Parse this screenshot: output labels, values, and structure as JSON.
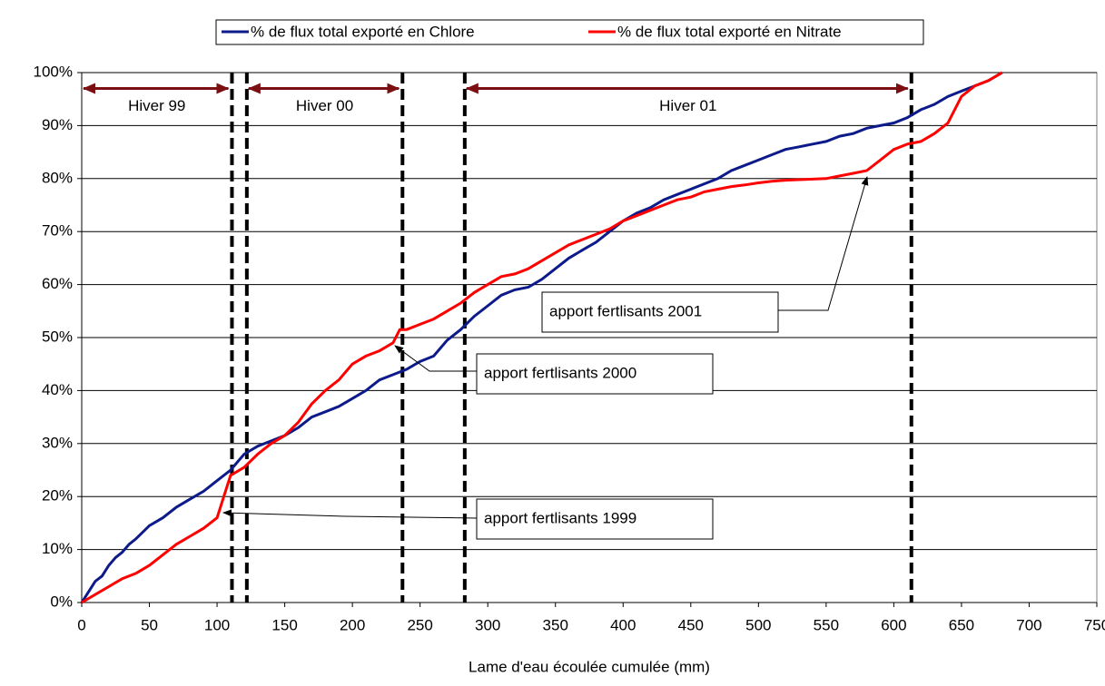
{
  "chart_data": {
    "type": "line",
    "x_label": "Lame d'eau écoulée cumulée (mm)",
    "xlim": [
      0,
      750
    ],
    "xticks": [
      0,
      50,
      100,
      150,
      200,
      250,
      300,
      350,
      400,
      450,
      500,
      550,
      600,
      650,
      700,
      750
    ],
    "ylim": [
      0,
      100
    ],
    "yticks": [
      {
        "value": 0,
        "label": "0%"
      },
      {
        "value": 10,
        "label": "10%"
      },
      {
        "value": 20,
        "label": "20%"
      },
      {
        "value": 30,
        "label": "30%"
      },
      {
        "value": 40,
        "label": "40%"
      },
      {
        "value": 50,
        "label": "50%"
      },
      {
        "value": 60,
        "label": "60%"
      },
      {
        "value": 70,
        "label": "70%"
      },
      {
        "value": 80,
        "label": "80%"
      },
      {
        "value": 90,
        "label": "90%"
      },
      {
        "value": 100,
        "label": "100%"
      }
    ],
    "grid": true,
    "legend": "top",
    "series": [
      {
        "name": "% de flux total exporté en Chlore",
        "color": "#0c1a8a",
        "x": [
          0,
          5,
          10,
          15,
          20,
          25,
          30,
          35,
          40,
          50,
          60,
          70,
          80,
          90,
          100,
          110,
          120,
          130,
          140,
          150,
          160,
          170,
          180,
          190,
          200,
          210,
          220,
          230,
          240,
          250,
          260,
          270,
          280,
          290,
          300,
          310,
          320,
          330,
          340,
          350,
          360,
          370,
          380,
          390,
          400,
          410,
          420,
          430,
          440,
          450,
          460,
          470,
          480,
          490,
          500,
          510,
          520,
          530,
          540,
          550,
          560,
          570,
          580,
          590,
          600,
          610,
          620,
          630,
          640,
          650,
          660,
          670,
          680
        ],
        "values": [
          0,
          2,
          4,
          5,
          7,
          8.5,
          9.5,
          11,
          12,
          14.5,
          16,
          18,
          19.5,
          21,
          23,
          25,
          28,
          29.5,
          30.5,
          31.5,
          33,
          35,
          36,
          37,
          38.5,
          40,
          42,
          43,
          44,
          45.5,
          46.5,
          49.5,
          51.5,
          54,
          56,
          58,
          59,
          59.5,
          61,
          63,
          65,
          66.5,
          68,
          70,
          72,
          73.5,
          74.5,
          76,
          77,
          78,
          79,
          80,
          81.5,
          82.5,
          83.5,
          84.5,
          85.5,
          86,
          86.5,
          87,
          88,
          88.5,
          89.5,
          90,
          90.5,
          91.5,
          93,
          94,
          95.5,
          96.5,
          97.5,
          98.5,
          100
        ]
      },
      {
        "name": "% de flux total exporté en Nitrate",
        "color": "#ff0000",
        "x": [
          0,
          10,
          20,
          30,
          40,
          50,
          60,
          70,
          80,
          90,
          100,
          105,
          110,
          120,
          130,
          140,
          150,
          160,
          170,
          180,
          190,
          200,
          210,
          220,
          230,
          235,
          240,
          250,
          260,
          270,
          280,
          290,
          300,
          310,
          320,
          330,
          340,
          350,
          360,
          370,
          380,
          390,
          400,
          410,
          420,
          430,
          440,
          450,
          460,
          470,
          480,
          490,
          500,
          510,
          520,
          530,
          540,
          550,
          560,
          570,
          580,
          590,
          600,
          610,
          620,
          630,
          640,
          650,
          660,
          670,
          680
        ],
        "values": [
          0,
          1.5,
          3,
          4.5,
          5.5,
          7,
          9,
          11,
          12.5,
          14,
          16,
          20,
          24,
          25.5,
          28,
          30,
          31.5,
          34,
          37.5,
          40,
          42,
          45,
          46.5,
          47.5,
          49,
          51.5,
          51.5,
          52.5,
          53.5,
          55,
          56.5,
          58.5,
          60,
          61.5,
          62,
          63,
          64.5,
          66,
          67.5,
          68.5,
          69.5,
          70.5,
          72,
          73,
          74,
          75,
          76,
          76.5,
          77.5,
          78,
          78.5,
          78.8,
          79.2,
          79.5,
          79.7,
          79.8,
          79.9,
          80,
          80.5,
          81,
          81.5,
          83.5,
          85.5,
          86.5,
          87,
          88.5,
          90.5,
          95.5,
          97.5,
          98.5,
          100
        ]
      }
    ],
    "vlines": [
      111,
      122,
      237,
      283,
      613
    ],
    "periods": [
      {
        "label": "Hiver 99",
        "start": 0,
        "end": 111
      },
      {
        "label": "Hiver 00",
        "start": 122,
        "end": 237
      },
      {
        "label": "Hiver 01",
        "start": 283,
        "end": 613
      }
    ],
    "annotations": [
      "apport fertlisants 2001",
      "apport fertlisants 2000",
      "apport fertlisants 1999"
    ]
  }
}
